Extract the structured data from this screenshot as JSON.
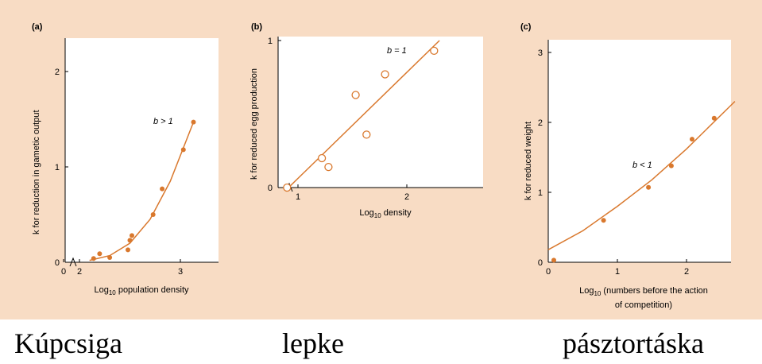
{
  "colors": {
    "accent": "#d9782d",
    "background": "#f8dcc4",
    "axis": "#000000"
  },
  "captions": [
    "Kúpcsiga",
    "lepke",
    "pásztortáska"
  ],
  "chart_data": [
    {
      "type": "scatter",
      "panel": "(a)",
      "xlabel": "Log10 population density",
      "ylabel": "k for reduction in gametic output",
      "annotation": "b > 1",
      "xticks": [
        "0",
        "2",
        "3"
      ],
      "yticks": [
        "0",
        "1",
        "2"
      ],
      "xlim": [
        1.8,
        3.3
      ],
      "ylim": [
        0,
        2.3
      ],
      "points": [
        [
          2.14,
          0.04
        ],
        [
          2.2,
          0.09
        ],
        [
          2.3,
          0.05
        ],
        [
          2.48,
          0.13
        ],
        [
          2.5,
          0.23
        ],
        [
          2.52,
          0.28
        ],
        [
          2.73,
          0.5
        ],
        [
          2.82,
          0.77
        ],
        [
          3.03,
          1.18
        ],
        [
          3.13,
          1.47
        ]
      ],
      "fit": [
        [
          2.1,
          0.02
        ],
        [
          2.3,
          0.07
        ],
        [
          2.5,
          0.2
        ],
        [
          2.7,
          0.45
        ],
        [
          2.9,
          0.85
        ],
        [
          3.13,
          1.47
        ]
      ]
    },
    {
      "type": "scatter",
      "panel": "(b)",
      "xlabel": "Log10 density",
      "ylabel": "k for reduced egg production",
      "annotation": "b = 1",
      "xticks": [
        "1",
        "2"
      ],
      "yticks": [
        "0",
        "1"
      ],
      "xlim": [
        0.8,
        2.9
      ],
      "ylim": [
        0,
        1
      ],
      "points": [
        [
          0.9,
          0.0
        ],
        [
          1.22,
          0.2
        ],
        [
          1.28,
          0.14
        ],
        [
          1.53,
          0.63
        ],
        [
          1.63,
          0.36
        ],
        [
          1.8,
          0.77
        ],
        [
          2.25,
          0.93
        ]
      ],
      "fit": [
        [
          0.9,
          -0.01
        ],
        [
          2.3,
          1.0
        ]
      ]
    },
    {
      "type": "scatter",
      "panel": "(c)",
      "xlabel": "Log10 (numbers before the action of competition)",
      "ylabel": "k for reduced weight",
      "annotation": "b < 1",
      "xticks": [
        "0",
        "1",
        "2"
      ],
      "yticks": [
        "0",
        "1",
        "2",
        "3"
      ],
      "xlim": [
        0,
        2.7
      ],
      "ylim": [
        0,
        3.1
      ],
      "points": [
        [
          0.08,
          0.03
        ],
        [
          0.8,
          0.6
        ],
        [
          1.45,
          1.07
        ],
        [
          1.78,
          1.38
        ],
        [
          2.08,
          1.76
        ],
        [
          2.4,
          2.06
        ]
      ],
      "fit": [
        [
          0,
          0.18
        ],
        [
          0.5,
          0.45
        ],
        [
          1.0,
          0.8
        ],
        [
          1.5,
          1.18
        ],
        [
          2.0,
          1.62
        ],
        [
          2.7,
          2.3
        ]
      ]
    }
  ]
}
